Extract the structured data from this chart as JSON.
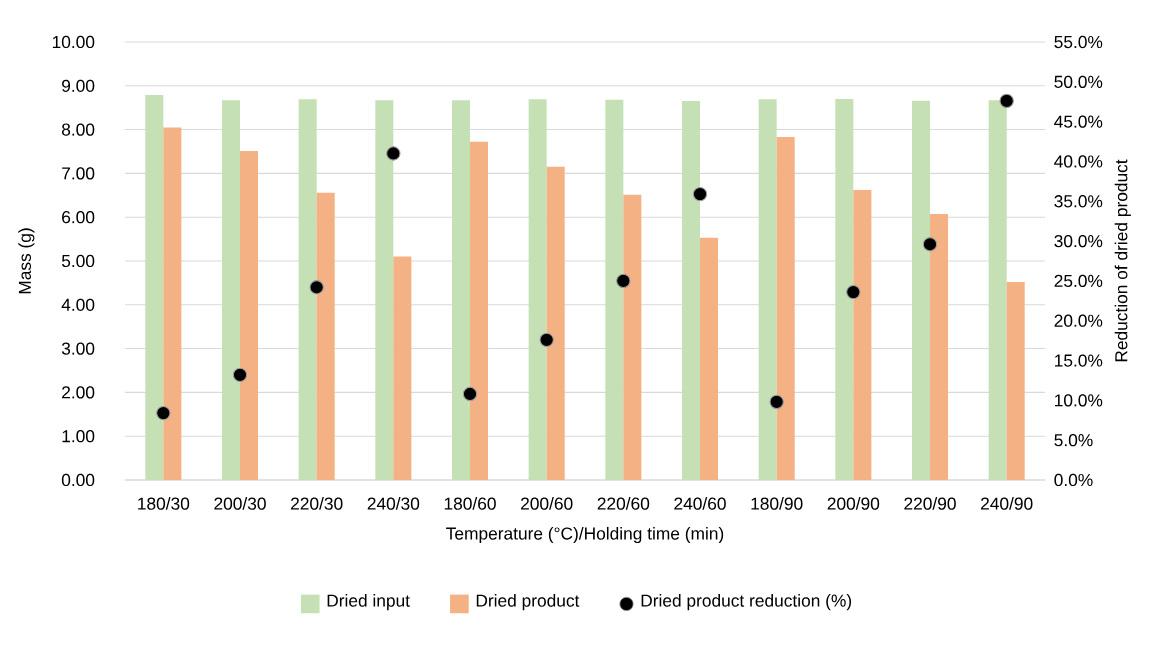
{
  "chart_data": {
    "type": "bar",
    "xlabel": "Temperature (°C)/Holding time (min)",
    "ylabel": "Mass (g)",
    "y2label": "Reduction of dried product",
    "categories": [
      "180/30",
      "200/30",
      "220/30",
      "240/30",
      "180/60",
      "200/60",
      "220/60",
      "240/60",
      "180/90",
      "200/90",
      "220/90",
      "240/90"
    ],
    "series": [
      {
        "name": "Dried input",
        "color": "#c5e0b4",
        "values": [
          8.79,
          8.67,
          8.69,
          8.67,
          8.67,
          8.69,
          8.68,
          8.65,
          8.69,
          8.7,
          8.66,
          8.67
        ]
      },
      {
        "name": "Dried product",
        "color": "#f4b183",
        "values": [
          8.05,
          7.51,
          6.56,
          5.1,
          7.72,
          7.15,
          6.51,
          5.53,
          7.83,
          6.62,
          6.07,
          4.52
        ]
      },
      {
        "name": "Dried product reduction (%)",
        "type": "scatter",
        "axis": "y2",
        "marker": "circle",
        "color": "#000000",
        "values": [
          8.4,
          13.2,
          24.2,
          41.0,
          10.8,
          17.6,
          25.0,
          35.9,
          9.8,
          23.6,
          29.6,
          47.6
        ]
      }
    ],
    "ylim": [
      0,
      10
    ],
    "yticks": [
      {
        "value": 0,
        "label": "0.00"
      },
      {
        "value": 1,
        "label": "1.00"
      },
      {
        "value": 2,
        "label": "2.00"
      },
      {
        "value": 3,
        "label": "3.00"
      },
      {
        "value": 4,
        "label": "4.00"
      },
      {
        "value": 5,
        "label": "5.00"
      },
      {
        "value": 6,
        "label": "6.00"
      },
      {
        "value": 7,
        "label": "7.00"
      },
      {
        "value": 8,
        "label": "8.00"
      },
      {
        "value": 9,
        "label": "9.00"
      },
      {
        "value": 10,
        "label": "10.00"
      }
    ],
    "y2lim": [
      0,
      55
    ],
    "y2ticks": [
      {
        "value": 0,
        "label": "0.0%"
      },
      {
        "value": 5,
        "label": "5.0%"
      },
      {
        "value": 10,
        "label": "10.0%"
      },
      {
        "value": 15,
        "label": "15.0%"
      },
      {
        "value": 20,
        "label": "20.0%"
      },
      {
        "value": 25,
        "label": "25.0%"
      },
      {
        "value": 30,
        "label": "30.0%"
      },
      {
        "value": 35,
        "label": "35.0%"
      },
      {
        "value": 40,
        "label": "40.0%"
      },
      {
        "value": 45,
        "label": "45.0%"
      },
      {
        "value": 50,
        "label": "50.0%"
      },
      {
        "value": 55,
        "label": "55.0%"
      }
    ],
    "grid": "y",
    "legend": "bottom"
  }
}
